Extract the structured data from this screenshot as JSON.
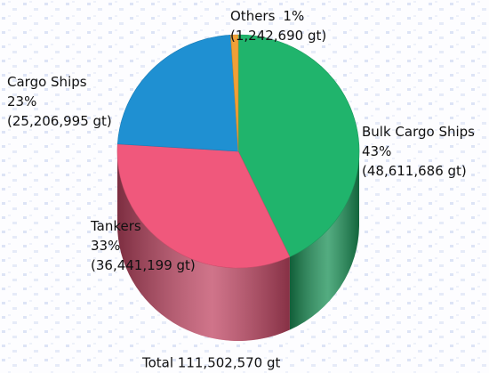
{
  "chart_data": {
    "type": "pie3d",
    "categories": [
      "Bulk Cargo Ships",
      "Tankers",
      "Cargo Ships",
      "Others"
    ],
    "values": [
      43,
      33,
      23,
      1
    ],
    "value_labels": [
      "43%",
      "33%",
      "23%",
      "1%"
    ],
    "tonnage": [
      48611686,
      36441199,
      25206995,
      1242690
    ],
    "tonnage_labels": [
      "(48,611,686 gt)",
      "(36,441,199 gt)",
      "(25,206,995 gt)",
      "(1,242,690 gt)"
    ],
    "colors": [
      "#20b46c",
      "#f0587c",
      "#1f90d2",
      "#f0a036"
    ],
    "total_label": "Total 111,502,570 gt"
  }
}
